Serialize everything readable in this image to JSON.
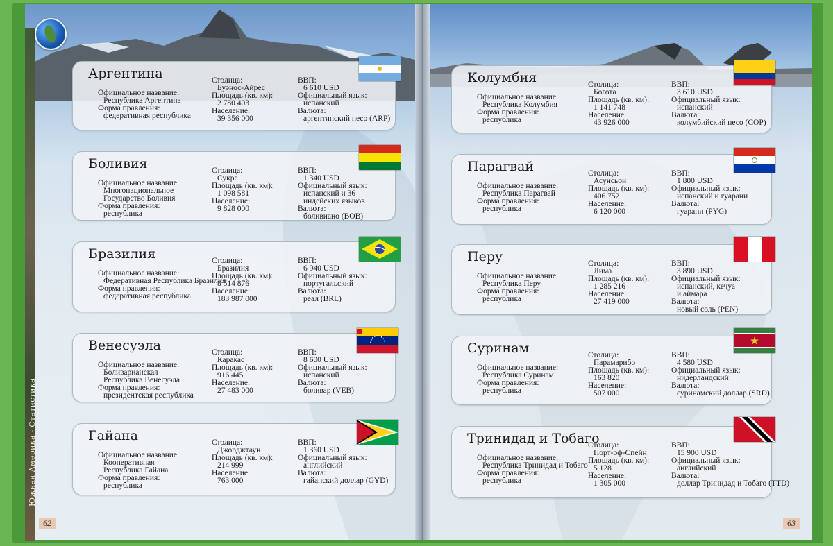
{
  "labels": {
    "official": "Официальное название:",
    "government": "Форма правления:",
    "capital": "Столица:",
    "area": "Площадь (кв. км):",
    "population": "Население:",
    "gdp": "ВВП:",
    "language": "Официальный язык:",
    "currency": "Валюта:"
  },
  "left_page": {
    "number": "62",
    "section": "Южная Америка - Статистика",
    "countries": [
      {
        "name": "Аргентина",
        "official": [
          "Республика Аргентина"
        ],
        "government": [
          "федеративная республика"
        ],
        "capital": "Буэнос-Айрес",
        "area": "2 780 403",
        "population": "39 356 000",
        "gdp": "6 610 USD",
        "language": [
          "испанский"
        ],
        "currency": "аргентинский песо (ARP)"
      },
      {
        "name": "Боливия",
        "official": [
          "Многонациональное",
          "Государство Боливия"
        ],
        "government": [
          "республика"
        ],
        "capital": "Сукре",
        "area": "1 098 581",
        "population": "9 828 000",
        "gdp": "1 340 USD",
        "language": [
          "испанский и 36",
          "индейских языков"
        ],
        "currency": "боливиано (BOB)"
      },
      {
        "name": "Бразилия",
        "official": [
          "Федеративная Республика Бразилия"
        ],
        "government": [
          "федеративная республика"
        ],
        "capital": "Бразилия",
        "area": "8 514 876",
        "population": "183 987 000",
        "gdp": "6 940 USD",
        "language": [
          "португальский"
        ],
        "currency": "реал (BRL)"
      },
      {
        "name": "Венесуэла",
        "official": [
          "Боливарианская",
          "Республика Венесуэла"
        ],
        "government": [
          "президентская республика"
        ],
        "capital": "Каракас",
        "area": "916 445",
        "population": "27 483 000",
        "gdp": "8 600 USD",
        "language": [
          "испанский"
        ],
        "currency": "боливар (VEB)"
      },
      {
        "name": "Гайана",
        "official": [
          "Кооперативная",
          "Республика Гайана"
        ],
        "government": [
          "республика"
        ],
        "capital": "Джорджтаун",
        "area": "214 999",
        "population": "763 000",
        "gdp": "1 360 USD",
        "language": [
          "английский"
        ],
        "currency": "гайанский доллар (GYD)"
      }
    ]
  },
  "right_page": {
    "number": "63",
    "countries": [
      {
        "name": "Колумбия",
        "official": [
          "Республика Колумбия"
        ],
        "government": [
          "республика"
        ],
        "capital": "Богота",
        "area": "1 141 748",
        "population": "43 926 000",
        "gdp": "3 610 USD",
        "language": [
          "испанский"
        ],
        "currency": "колумбийский песо (COP)"
      },
      {
        "name": "Парагвай",
        "official": [
          "Республика Парагвай"
        ],
        "government": [
          "республика"
        ],
        "capital": "Асунсьон",
        "area": "406 752",
        "population": "6 120 000",
        "gdp": "1 800 USD",
        "language": [
          "испанский и гуарани"
        ],
        "currency": "гуарани (PYG)"
      },
      {
        "name": "Перу",
        "official": [
          "Республика Перу"
        ],
        "government": [
          "республика"
        ],
        "capital": "Лима",
        "area": "1 285 216",
        "population": "27 419 000",
        "gdp": "3 890 USD",
        "language": [
          "испанский, кечуа",
          "и аймара"
        ],
        "currency": "новый соль (PEN)"
      },
      {
        "name": "Суринам",
        "official": [
          "Республика Суринам"
        ],
        "government": [
          "республика"
        ],
        "capital": "Парамарибо",
        "area": "163 820",
        "population": "507 000",
        "gdp": "4 580 USD",
        "language": [
          "нидерландский"
        ],
        "currency": "суринамский доллар (SRD)"
      },
      {
        "name": "Тринидад и Тобаго",
        "official": [
          "Республика Тринидад и Тобаго"
        ],
        "government": [
          "республика"
        ],
        "capital": "Порт-оф-Спейн",
        "area": "5 128",
        "population": "1 305 000",
        "gdp": "15 900 USD",
        "language": [
          "английский"
        ],
        "currency": "доллар Тринидад и Тобаго (TTD)"
      }
    ]
  },
  "flags": [
    "argentina-flag",
    "bolivia-flag",
    "brazil-flag",
    "venezuela-flag",
    "guyana-flag",
    "colombia-flag",
    "paraguay-flag",
    "peru-flag",
    "suriname-flag",
    "trinidad-and-tobago-flag"
  ]
}
